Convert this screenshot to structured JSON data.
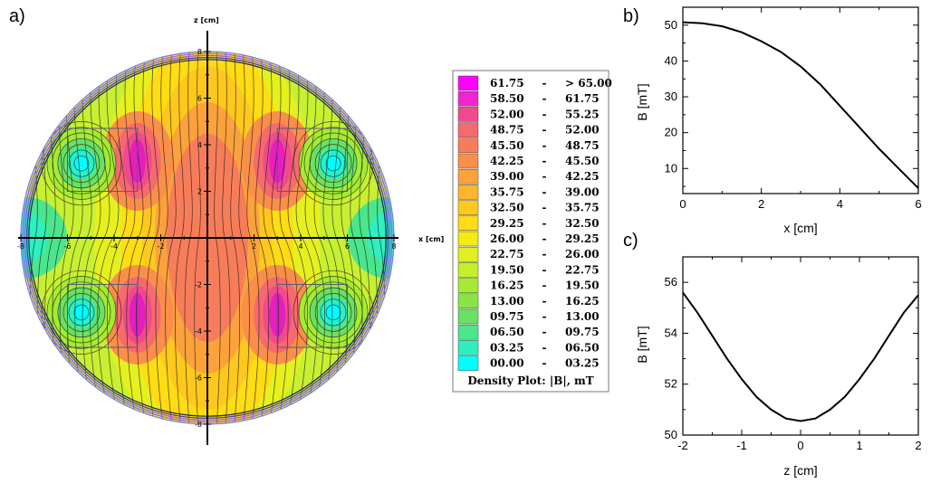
{
  "chart_data": [
    {
      "panel": "a)",
      "type": "heatmap",
      "xlabel": "x [cm]",
      "ylabel": "z [cm]",
      "xlim": [
        -8,
        8
      ],
      "ylim": [
        -8,
        8
      ],
      "x_ticks": [
        "-8",
        "-6",
        "-4",
        "-2",
        "0",
        "2",
        "4",
        "6",
        "8"
      ],
      "y_ticks": [
        "8",
        "6",
        "4",
        "2",
        "0",
        "-2",
        "-4",
        "-6",
        "-8"
      ],
      "legend_title": "Density Plot: |B|,  mT",
      "legend": [
        {
          "low": "61.75",
          "sep": "-",
          "high": "> 65.00",
          "color": "#ff00ff"
        },
        {
          "low": "58.50",
          "sep": "-",
          "high": "61.75",
          "color": "#f024d2"
        },
        {
          "low": "52.00",
          "sep": "-",
          "high": "55.25",
          "color": "#f04a8c"
        },
        {
          "low": "48.75",
          "sep": "-",
          "high": "52.00",
          "color": "#f56a6e"
        },
        {
          "low": "45.50",
          "sep": "-",
          "high": "48.75",
          "color": "#f77d5a"
        },
        {
          "low": "42.25",
          "sep": "-",
          "high": "45.50",
          "color": "#fa8f4a"
        },
        {
          "low": "39.00",
          "sep": "-",
          "high": "42.25",
          "color": "#fca23c"
        },
        {
          "low": "35.75",
          "sep": "-",
          "high": "39.00",
          "color": "#ffb52c"
        },
        {
          "low": "32.50",
          "sep": "-",
          "high": "35.75",
          "color": "#ffc81e"
        },
        {
          "low": "29.25",
          "sep": "-",
          "high": "32.50",
          "color": "#ffdc14"
        },
        {
          "low": "26.00",
          "sep": "-",
          "high": "29.25",
          "color": "#f5ea14"
        },
        {
          "low": "22.75",
          "sep": "-",
          "high": "26.00",
          "color": "#e1f01e"
        },
        {
          "low": "19.50",
          "sep": "-",
          "high": "22.75",
          "color": "#c3f028"
        },
        {
          "low": "16.25",
          "sep": "-",
          "high": "19.50",
          "color": "#a5eb32"
        },
        {
          "low": "13.00",
          "sep": "-",
          "high": "16.25",
          "color": "#87e646"
        },
        {
          "low": "09.75",
          "sep": "-",
          "high": "13.00",
          "color": "#69e164"
        },
        {
          "low": "06.50",
          "sep": "-",
          "high": "09.75",
          "color": "#4be68c"
        },
        {
          "low": "03.25",
          "sep": "-",
          "high": "06.50",
          "color": "#2df0be"
        },
        {
          "low": "00.00",
          "sep": "-",
          "high": "03.25",
          "color": "#00ffff"
        }
      ]
    },
    {
      "panel": "b)",
      "type": "line",
      "xlabel": "x [cm]",
      "ylabel": "B [mT]",
      "xlim": [
        0,
        6
      ],
      "ylim": [
        3,
        55
      ],
      "x_ticks": [
        0,
        2,
        4,
        6
      ],
      "y_ticks": [
        10,
        20,
        30,
        40,
        50
      ],
      "x": [
        0,
        0.5,
        1.0,
        1.5,
        2.0,
        2.5,
        3.0,
        3.5,
        4.0,
        4.5,
        5.0,
        5.5,
        6.0
      ],
      "y": [
        50.8,
        50.5,
        49.7,
        48.0,
        45.5,
        42.5,
        38.5,
        33.5,
        27.5,
        21.5,
        15.5,
        10.0,
        4.5
      ]
    },
    {
      "panel": "c)",
      "type": "line",
      "xlabel": "z [cm]",
      "ylabel": "B [mT]",
      "xlim": [
        -2,
        2
      ],
      "ylim": [
        50,
        57
      ],
      "x_ticks": [
        -2,
        -1,
        0,
        1,
        2
      ],
      "y_ticks": [
        50,
        52,
        54,
        56
      ],
      "x": [
        -2.0,
        -1.75,
        -1.5,
        -1.25,
        -1.0,
        -0.75,
        -0.5,
        -0.25,
        0.0,
        0.25,
        0.5,
        0.75,
        1.0,
        1.25,
        1.5,
        1.75,
        2.0
      ],
      "y": [
        55.6,
        54.8,
        53.9,
        53.0,
        52.2,
        51.5,
        51.0,
        50.65,
        50.55,
        50.65,
        51.0,
        51.5,
        52.2,
        53.0,
        53.9,
        54.8,
        55.5
      ]
    }
  ]
}
